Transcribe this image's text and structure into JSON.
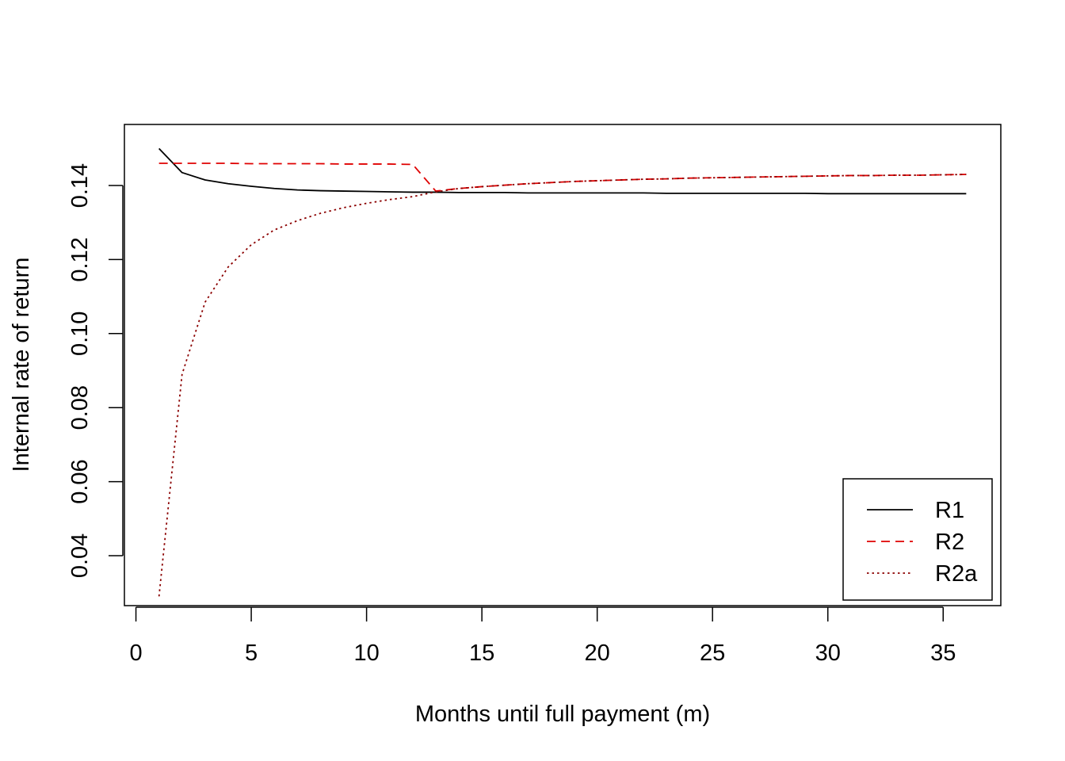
{
  "chart_data": {
    "type": "line",
    "title": "",
    "xlabel": "Months until full payment (m)",
    "ylabel": "Internal rate of return",
    "xlim": [
      -0.5,
      37.5
    ],
    "ylim": [
      0.0265,
      0.1565
    ],
    "xticks": [
      0,
      5,
      10,
      15,
      20,
      25,
      30,
      35
    ],
    "xtick_labels": [
      "0",
      "5",
      "10",
      "15",
      "20",
      "25",
      "30",
      "35"
    ],
    "yticks": [
      0.04,
      0.06,
      0.08,
      0.1,
      0.12,
      0.14
    ],
    "ytick_labels": [
      "0.04",
      "0.06",
      "0.08",
      "0.10",
      "0.12",
      "0.14"
    ],
    "grid": false,
    "legend_position": "bottom-right",
    "x": [
      1,
      2,
      3,
      4,
      5,
      6,
      7,
      8,
      9,
      10,
      11,
      12,
      13,
      14,
      15,
      16,
      17,
      18,
      19,
      20,
      21,
      22,
      23,
      24,
      25,
      26,
      27,
      28,
      29,
      30,
      31,
      32,
      33,
      34,
      35,
      36
    ],
    "series": [
      {
        "name": "R1",
        "color": "#000000",
        "dash": "solid",
        "values": [
          0.15,
          0.1435,
          0.1415,
          0.1405,
          0.1398,
          0.1392,
          0.1388,
          0.1386,
          0.1385,
          0.1384,
          0.1383,
          0.1382,
          0.1382,
          0.1381,
          0.1381,
          0.1381,
          0.138,
          0.138,
          0.138,
          0.138,
          0.138,
          0.138,
          0.1379,
          0.1379,
          0.1379,
          0.1379,
          0.1379,
          0.1379,
          0.1379,
          0.1378,
          0.1378,
          0.1378,
          0.1378,
          0.1378,
          0.1378,
          0.1378
        ]
      },
      {
        "name": "R2",
        "color": "#DF0000",
        "dash": "dashed",
        "values": [
          0.146,
          0.146,
          0.146,
          0.146,
          0.1459,
          0.1459,
          0.1459,
          0.1459,
          0.1458,
          0.1458,
          0.1458,
          0.1457,
          0.1385,
          0.1392,
          0.1397,
          0.1401,
          0.1405,
          0.1408,
          0.1411,
          0.1413,
          0.1415,
          0.1417,
          0.1418,
          0.142,
          0.1421,
          0.1422,
          0.1423,
          0.1424,
          0.1425,
          0.1426,
          0.1427,
          0.1427,
          0.1428,
          0.1428,
          0.1429,
          0.143
        ]
      },
      {
        "name": "R2a",
        "color": "#8B0000",
        "dash": "dotted",
        "values": [
          0.029,
          0.089,
          0.1085,
          0.118,
          0.124,
          0.128,
          0.1305,
          0.1325,
          0.134,
          0.1352,
          0.1362,
          0.137,
          0.1383,
          0.1392,
          0.1397,
          0.1401,
          0.1405,
          0.1408,
          0.1411,
          0.1413,
          0.1415,
          0.1417,
          0.1418,
          0.142,
          0.1421,
          0.1422,
          0.1423,
          0.1424,
          0.1425,
          0.1426,
          0.1427,
          0.1427,
          0.1428,
          0.1428,
          0.1429,
          0.143
        ]
      }
    ]
  }
}
